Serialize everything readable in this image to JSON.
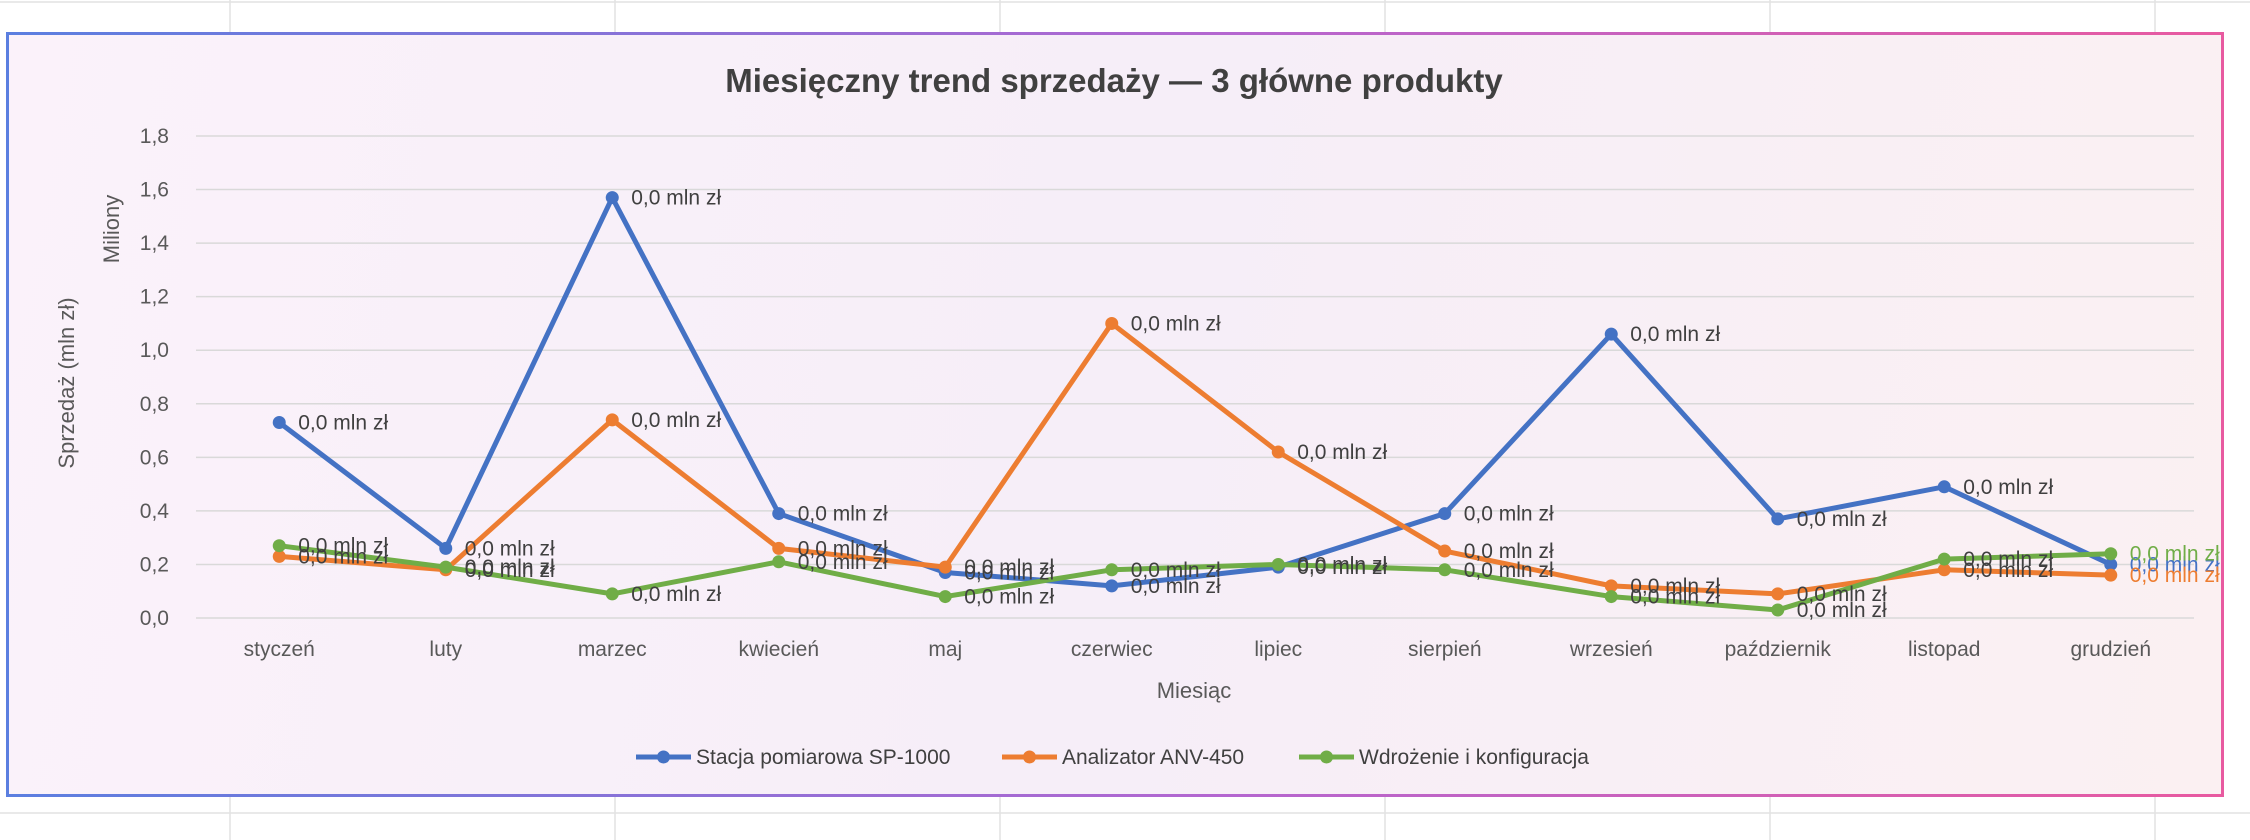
{
  "chart_data": {
    "type": "line",
    "title": "Miesięczny trend sprzedaży — 3 główne produkty",
    "xlabel": "Miesiąc",
    "ylabel": "Sprzedaż (mln zł)",
    "y_display_unit": "Miliony",
    "ylim": [
      0,
      1.8
    ],
    "yticks": [
      "0,0",
      "0,2",
      "0,4",
      "0,6",
      "0,8",
      "1,0",
      "1,2",
      "1,4",
      "1,6",
      "1,8"
    ],
    "grid": true,
    "legend_position": "bottom",
    "data_label_text": "0,0 mln zł",
    "categories": [
      "styczeń",
      "luty",
      "marzec",
      "kwiecień",
      "maj",
      "czerwiec",
      "lipiec",
      "sierpień",
      "wrzesień",
      "październik",
      "listopad",
      "grudzień"
    ],
    "series": [
      {
        "name": "Stacja pomiarowa SP-1000",
        "color": "#4472c4",
        "values": [
          0.73,
          0.26,
          1.57,
          0.39,
          0.17,
          0.12,
          0.19,
          0.39,
          1.06,
          0.37,
          0.49,
          0.2
        ]
      },
      {
        "name": "Analizator ANV-450",
        "color": "#ed7d31",
        "values": [
          0.23,
          0.18,
          0.74,
          0.26,
          0.19,
          1.1,
          0.62,
          0.25,
          0.12,
          0.09,
          0.18,
          0.16
        ]
      },
      {
        "name": "Wdrożenie i konfiguracja",
        "color": "#70ad47",
        "values": [
          0.27,
          0.19,
          0.09,
          0.21,
          0.08,
          0.18,
          0.2,
          0.18,
          0.08,
          0.03,
          0.22,
          0.24
        ]
      }
    ]
  }
}
